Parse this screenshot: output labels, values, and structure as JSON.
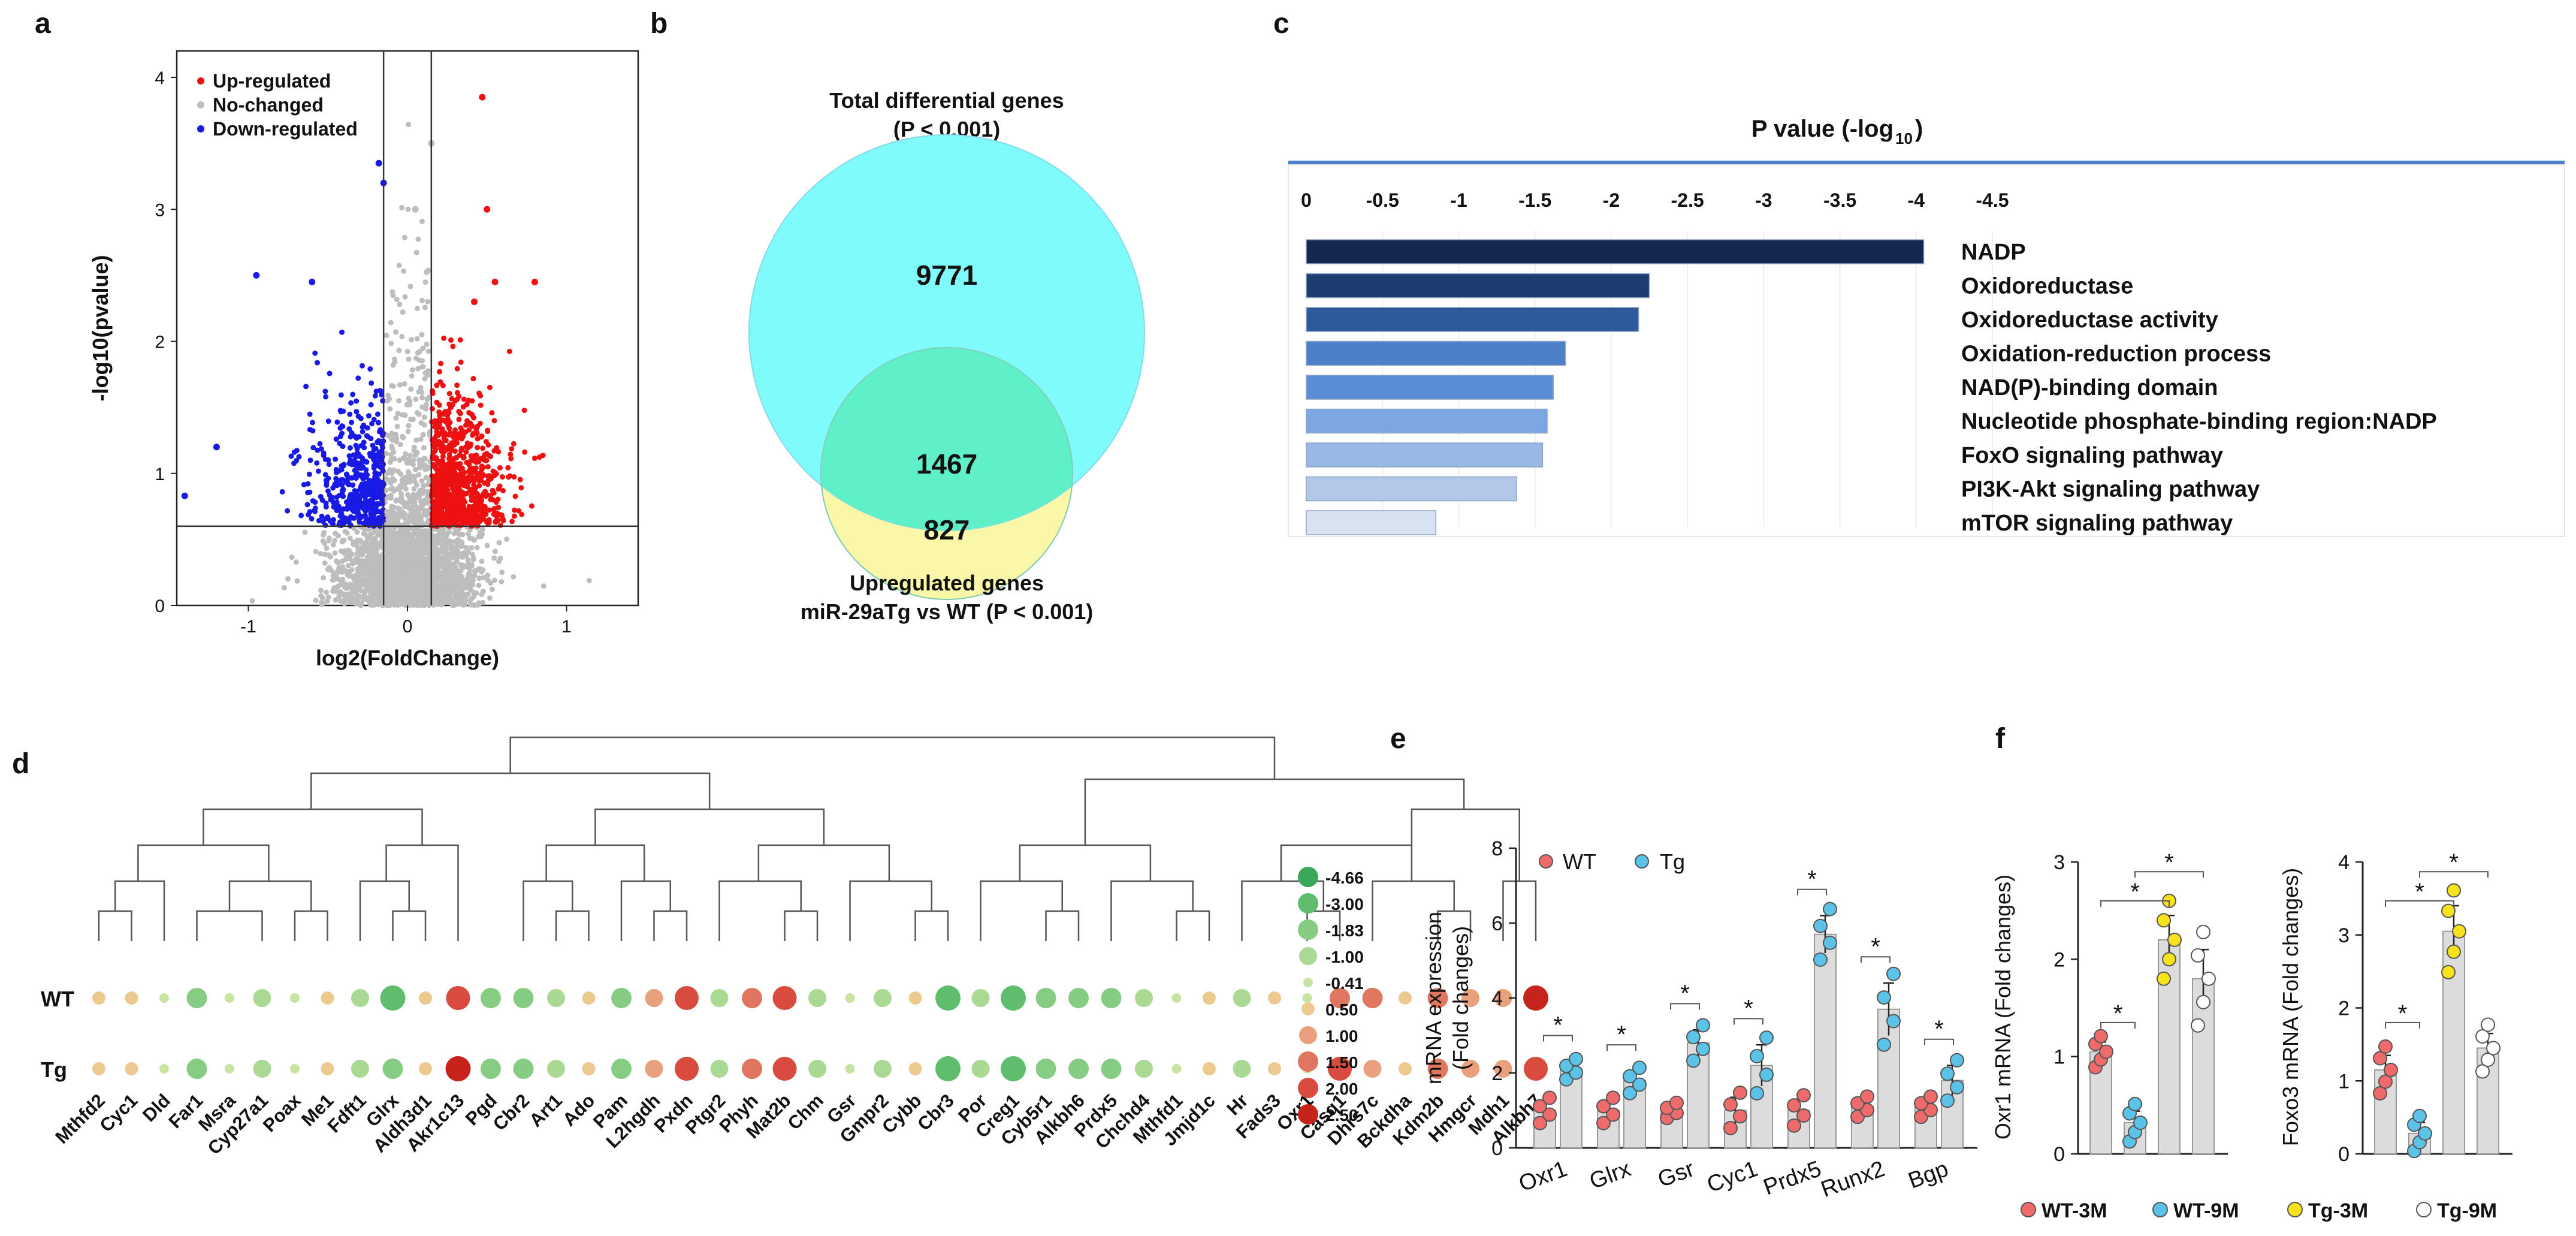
{
  "panel_labels": {
    "a": "a",
    "b": "b",
    "c": "c",
    "d": "d",
    "e": "e",
    "f": "f"
  },
  "colors": {
    "up": "#ee1111",
    "down": "#1a1ae6",
    "nochange": "#bdbdbd",
    "venn_total": "#7ffbfb",
    "venn_up": "#fbf7a8",
    "venn_overlap": "#5ff0c8",
    "wt": "#ef6b6b",
    "tg": "#5bc3e8",
    "wt3m": "#ef6b6b",
    "wt9m": "#5bc3e8",
    "tg3m": "#f7e21c",
    "tg9m": "#ffffff",
    "bar_fill": "#dcdcdc"
  },
  "chart_data": [
    {
      "id": "a",
      "type": "scatter",
      "title": "",
      "xlabel": "log2(FoldChange)",
      "ylabel": "-log10(pvalue)",
      "xlim": [
        -1.45,
        1.45
      ],
      "ylim": [
        0,
        4.2
      ],
      "xticks": [
        "-1",
        "0",
        "1"
      ],
      "xtick_values": [
        -1,
        0,
        1
      ],
      "yticks": [
        "0",
        "1",
        "2",
        "3",
        "4"
      ],
      "ytick_values": [
        0,
        1,
        2,
        3,
        4
      ],
      "thresholds": {
        "x": [
          -0.15,
          0.15
        ],
        "y": 0.6
      },
      "legend": [
        "Up-regulated",
        "No-changed",
        "Down-regulated"
      ],
      "highlight_points": [
        {
          "x": -1.4,
          "y": 0.83,
          "g": "down"
        },
        {
          "x": -1.2,
          "y": 1.2,
          "g": "down"
        },
        {
          "x": -0.95,
          "y": 2.5,
          "g": "down"
        },
        {
          "x": -0.6,
          "y": 2.45,
          "g": "down"
        },
        {
          "x": -0.18,
          "y": 3.35,
          "g": "down"
        },
        {
          "x": -0.15,
          "y": 3.2,
          "g": "down"
        },
        {
          "x": 0.47,
          "y": 3.85,
          "g": "up"
        },
        {
          "x": 0.5,
          "y": 3.0,
          "g": "up"
        },
        {
          "x": 0.55,
          "y": 2.45,
          "g": "up"
        },
        {
          "x": 0.42,
          "y": 2.3,
          "g": "up"
        },
        {
          "x": 0.8,
          "y": 2.45,
          "g": "up"
        },
        {
          "x": 0.15,
          "y": 3.5,
          "g": "nochange"
        },
        {
          "x": 0.05,
          "y": 3.0,
          "g": "nochange"
        }
      ]
    },
    {
      "id": "b",
      "type": "venn",
      "title_line1": "Total differential genes",
      "title_line2": "(P < 0.001)",
      "bottom_line1": "Upregulated genes",
      "bottom_line2": "miR-29aTg vs WT (P < 0.001)",
      "only_total": "9771",
      "overlap": "1467",
      "only_up": "827"
    },
    {
      "id": "c",
      "type": "bar",
      "title": "P value (-log",
      "title_sub": "10",
      "title_end": ")",
      "xticks": [
        "0",
        "-0.5",
        "-1",
        "-1.5",
        "-2",
        "-2.5",
        "-3",
        "-3.5",
        "-4",
        "-4.5"
      ],
      "xlim": [
        0,
        4.5
      ],
      "categories": [
        "NADP",
        "Oxidoreductase",
        "Oxidoreductase activity",
        "Oxidation-reduction process",
        "NAD(P)-binding domain",
        "Nucleotide phosphate-binding region:NADP",
        "FoxO signaling pathway",
        "PI3K-Akt signaling pathway",
        "mTOR signaling pathway"
      ],
      "values": [
        4.05,
        2.25,
        2.18,
        1.7,
        1.62,
        1.58,
        1.55,
        1.38,
        0.85
      ],
      "bar_colors": [
        "#13274f",
        "#1d3c72",
        "#2e5a9c",
        "#4d80c9",
        "#5a8dd6",
        "#7da7e2",
        "#98b9e6",
        "#b2c8e8",
        "#d8e3f2"
      ]
    },
    {
      "id": "d",
      "type": "dotplot",
      "rows": [
        "WT",
        "Tg"
      ],
      "genes": [
        "Mthfd2",
        "Cyc1",
        "Dld",
        "Far1",
        "Msra",
        "Cyp27a1",
        "Poax",
        "Me1",
        "Fdft1",
        "Glrx",
        "Aldh3d1",
        "Akr1c13",
        "Pgd",
        "Cbr2",
        "Art1",
        "Ado",
        "Pam",
        "L2hgdh",
        "Pxdn",
        "Ptgr2",
        "Phyh",
        "Mat2b",
        "Chm",
        "Gsr",
        "Gmpr2",
        "Cybb",
        "Cbr3",
        "Por",
        "Creg1",
        "Cyb5r1",
        "Alkbh6",
        "Prdx5",
        "Chchd4",
        "Mthfd1",
        "Jmjd1c",
        "Hr",
        "Fads3",
        "Oxr1",
        "Casq1",
        "Dhrs7c",
        "Bckdha",
        "Kdm2b",
        "Hmgcr",
        "Mdh1",
        "Alkbh7"
      ],
      "wt_values": [
        0.5,
        0.5,
        -0.41,
        -1.83,
        -0.41,
        -1.0,
        -0.41,
        0.5,
        -1.0,
        -3.0,
        0.5,
        2.0,
        -1.83,
        -1.83,
        -1.0,
        0.5,
        -1.83,
        1.0,
        2.0,
        -1.0,
        1.5,
        2.0,
        -1.0,
        -0.41,
        -1.0,
        0.5,
        -3.0,
        -1.0,
        -3.0,
        -1.83,
        -1.83,
        -1.83,
        -1.0,
        -0.41,
        0.5,
        -1.0,
        0.5,
        -0.41,
        1.5,
        1.5,
        0.5,
        1.5,
        1.0,
        1.0,
        2.5
      ],
      "tg_values": [
        0.5,
        0.5,
        -0.41,
        -1.83,
        -0.41,
        -1.0,
        -0.41,
        0.5,
        -1.0,
        -1.83,
        0.5,
        2.5,
        -1.83,
        -1.83,
        -1.0,
        0.5,
        -1.83,
        1.0,
        2.0,
        -1.0,
        1.5,
        2.0,
        -1.0,
        -0.41,
        -1.0,
        0.5,
        -3.0,
        -1.0,
        -3.0,
        -1.83,
        -1.83,
        -1.83,
        -1.0,
        -0.41,
        0.5,
        -1.0,
        0.5,
        -0.41,
        2.0,
        1.0,
        0.5,
        1.5,
        1.0,
        1.0,
        2.0
      ],
      "legend": [
        "-4.66",
        "-3.00",
        "-1.83",
        "-1.00",
        "-0.41",
        "0.50",
        "1.00",
        "1.50",
        "2.00",
        "2.50"
      ]
    },
    {
      "id": "e",
      "type": "bar",
      "ylabel_line1": "mRNA expression",
      "ylabel_line2": "(Fold changes)",
      "yticks": [
        "0",
        "2",
        "4",
        "6",
        "8"
      ],
      "ylim": [
        0,
        8
      ],
      "categories": [
        "Oxr1",
        "Glrx",
        "Gsr",
        "Cyc1",
        "Prdx5",
        "Runx2",
        "Bgp"
      ],
      "series": [
        {
          "name": "WT",
          "values": [
            1.0,
            1.0,
            1.0,
            1.0,
            1.0,
            1.1,
            1.1
          ]
        },
        {
          "name": "Tg",
          "values": [
            2.1,
            1.8,
            2.8,
            2.2,
            5.7,
            3.7,
            1.8
          ]
        }
      ],
      "errors": {
        "WT": [
          0.25,
          0.25,
          0.15,
          0.35,
          0.3,
          0.2,
          0.2
        ],
        "Tg": [
          0.2,
          0.25,
          0.35,
          0.55,
          0.5,
          0.7,
          0.4
        ]
      },
      "significance": [
        "*",
        "*",
        "*",
        "*",
        "*",
        "*",
        "*"
      ]
    },
    {
      "id": "f1",
      "type": "bar",
      "ylabel": "Oxr1 mRNA (Fold changes)",
      "yticks": [
        "0",
        "1",
        "2",
        "3"
      ],
      "ylim": [
        0,
        3
      ],
      "categories": [
        "WT-3M",
        "WT-9M",
        "Tg-3M",
        "Tg-9M"
      ],
      "values": [
        1.05,
        0.32,
        2.2,
        1.8
      ],
      "errors": [
        0.1,
        0.12,
        0.25,
        0.3
      ],
      "significance": [
        "*",
        "*",
        "*"
      ]
    },
    {
      "id": "f2",
      "type": "bar",
      "ylabel": "Foxo3 mRNA (Fold changes)",
      "yticks": [
        "0",
        "1",
        "2",
        "3",
        "4"
      ],
      "ylim": [
        0,
        4
      ],
      "categories": [
        "WT-3M",
        "WT-9M",
        "Tg-3M",
        "Tg-9M"
      ],
      "values": [
        1.15,
        0.28,
        3.05,
        1.45
      ],
      "errors": [
        0.2,
        0.15,
        0.35,
        0.2
      ],
      "significance": [
        "*",
        "*",
        "*"
      ]
    }
  ],
  "legend_f": [
    "WT-3M",
    "WT-9M",
    "Tg-3M",
    "Tg-9M"
  ],
  "legend_e": [
    "WT",
    "Tg"
  ]
}
